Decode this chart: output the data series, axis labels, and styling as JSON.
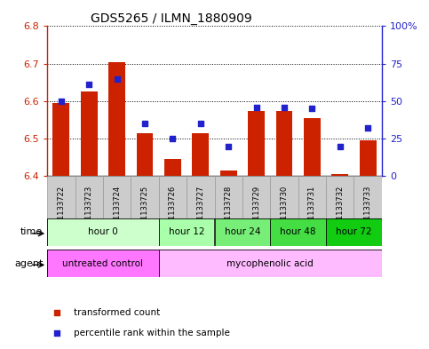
{
  "title": "GDS5265 / ILMN_1880909",
  "samples": [
    "GSM1133722",
    "GSM1133723",
    "GSM1133724",
    "GSM1133725",
    "GSM1133726",
    "GSM1133727",
    "GSM1133728",
    "GSM1133729",
    "GSM1133730",
    "GSM1133731",
    "GSM1133732",
    "GSM1133733"
  ],
  "transformed_count": [
    6.595,
    6.625,
    6.705,
    6.515,
    6.445,
    6.515,
    6.415,
    6.575,
    6.575,
    6.555,
    6.405,
    6.495
  ],
  "percentile_rank": [
    50,
    61,
    65,
    35,
    25,
    35,
    20,
    46,
    46,
    45,
    20,
    32
  ],
  "ylim_left": [
    6.4,
    6.8
  ],
  "ylim_right": [
    0,
    100
  ],
  "yticks_left": [
    6.4,
    6.5,
    6.6,
    6.7,
    6.8
  ],
  "yticks_right": [
    0,
    25,
    50,
    75,
    100
  ],
  "ytick_labels_right": [
    "0",
    "25",
    "50",
    "75",
    "100%"
  ],
  "bar_color": "#cc2200",
  "dot_color": "#2222cc",
  "bar_bottom": 6.4,
  "time_groups": [
    {
      "label": "hour 0",
      "indices": [
        0,
        1,
        2,
        3
      ],
      "color": "#ccffcc"
    },
    {
      "label": "hour 12",
      "indices": [
        4,
        5
      ],
      "color": "#aaffaa"
    },
    {
      "label": "hour 24",
      "indices": [
        6,
        7
      ],
      "color": "#77ee77"
    },
    {
      "label": "hour 48",
      "indices": [
        8,
        9
      ],
      "color": "#44dd44"
    },
    {
      "label": "hour 72",
      "indices": [
        10,
        11
      ],
      "color": "#11cc11"
    }
  ],
  "agent_groups": [
    {
      "label": "untreated control",
      "indices": [
        0,
        1,
        2,
        3
      ],
      "color": "#ff77ff"
    },
    {
      "label": "mycophenolic acid",
      "indices": [
        4,
        5,
        6,
        7,
        8,
        9,
        10,
        11
      ],
      "color": "#ffbbff"
    }
  ],
  "bar_width": 0.6,
  "xlim": [
    -0.5,
    11.5
  ],
  "left_axis_color": "#cc2200",
  "right_axis_color": "#2222cc",
  "grid_color": "black",
  "sample_cell_color": "#cccccc",
  "sample_cell_edge": "#999999"
}
